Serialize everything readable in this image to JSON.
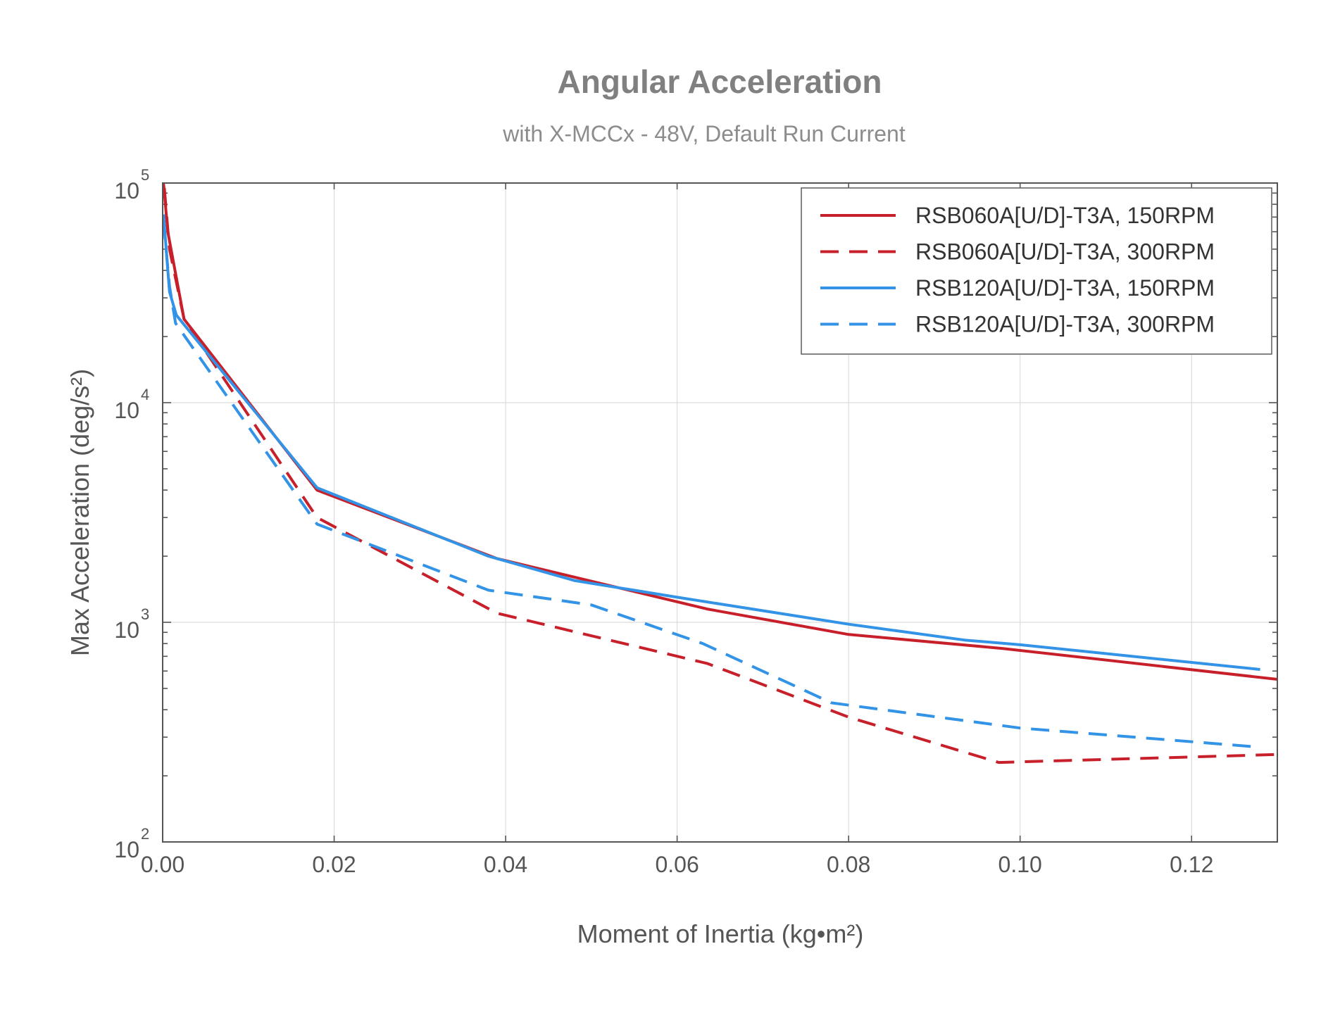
{
  "chart_data": {
    "type": "line",
    "title": "Angular Acceleration",
    "subtitle": "with X-MCCx - 48V, Default Run Current",
    "xlabel": "Moment of Inertia (kg•m²)",
    "ylabel": "Max Acceleration (deg/s²)",
    "xlim": [
      0,
      0.13
    ],
    "ylim": [
      100,
      100000
    ],
    "yscale": "log",
    "grid": true,
    "legend_position": "top-right",
    "x_ticks": [
      "0.00",
      "0.02",
      "0.04",
      "0.06",
      "0.08",
      "0.10",
      "0.12"
    ],
    "y_ticks": [
      {
        "base": "10",
        "exp": "2"
      },
      {
        "base": "10",
        "exp": "3"
      },
      {
        "base": "10",
        "exp": "4"
      },
      {
        "base": "10",
        "exp": "5"
      }
    ],
    "series": [
      {
        "name": "RSB060A[U/D]-T3A, 150RPM",
        "color": "#c8202a",
        "dash": "solid",
        "x": [
          0.0001,
          0.0006,
          0.0025,
          0.018,
          0.039,
          0.0635,
          0.08,
          0.098,
          0.13
        ],
        "y": [
          100000,
          60000,
          24000,
          4000,
          1950,
          1150,
          880,
          760,
          550
        ]
      },
      {
        "name": "RSB060A[U/D]-T3A, 300RPM",
        "color": "#c8202a",
        "dash": "dashed",
        "x": [
          0.0002,
          0.0008,
          0.0025,
          0.018,
          0.039,
          0.0635,
          0.08,
          0.0975,
          0.13
        ],
        "y": [
          95000,
          50000,
          24000,
          3000,
          1100,
          650,
          370,
          230,
          250
        ]
      },
      {
        "name": "RSB120A[U/D]-T3A, 150RPM",
        "color": "#3393e6",
        "dash": "solid",
        "x": [
          0.0001,
          0.0008,
          0.0016,
          0.018,
          0.038,
          0.048,
          0.06,
          0.08,
          0.0935,
          0.1,
          0.128
        ],
        "y": [
          72000,
          32000,
          25000,
          4100,
          2000,
          1550,
          1300,
          980,
          830,
          790,
          610
        ]
      },
      {
        "name": "RSB120A[U/D]-T3A, 300RPM",
        "color": "#3393e6",
        "dash": "dashed",
        "x": [
          0.0001,
          0.0008,
          0.0015,
          0.018,
          0.038,
          0.05,
          0.063,
          0.078,
          0.1,
          0.128
        ],
        "y": [
          67000,
          34000,
          23000,
          2800,
          1400,
          1200,
          800,
          430,
          330,
          270
        ]
      }
    ]
  }
}
